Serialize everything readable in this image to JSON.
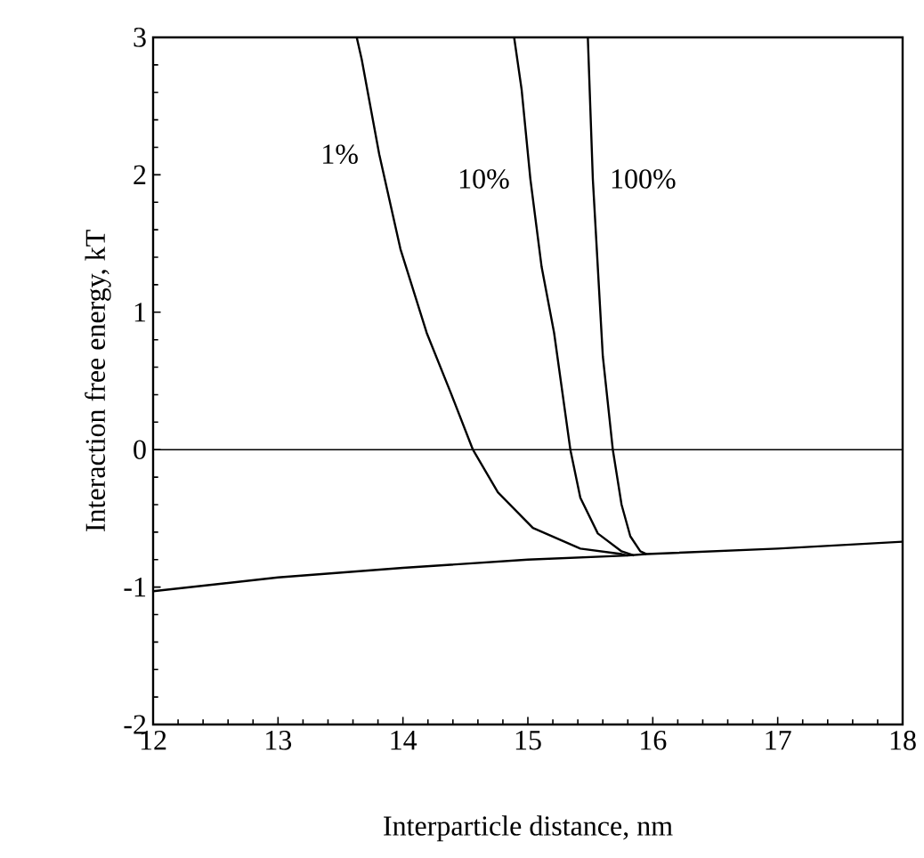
{
  "chart_data": {
    "type": "line",
    "xlabel": "Interparticle distance, nm",
    "ylabel": "Interaction free energy, kT",
    "xlim": [
      12,
      18
    ],
    "ylim": [
      -2,
      3
    ],
    "xticks": [
      12,
      13,
      14,
      15,
      16,
      17,
      18
    ],
    "yticks": [
      -2,
      -1,
      0,
      1,
      2,
      3
    ],
    "grid": false,
    "legend": false,
    "marker": "none",
    "line_style": "solid",
    "ref_lines": [
      {
        "axis": "y",
        "value": 0,
        "color": "#000000"
      }
    ],
    "series": [
      {
        "color": "#000000",
        "x": [
          12,
          13,
          14,
          15,
          15.8,
          15.95,
          17,
          18
        ],
        "values": [
          -1.03,
          -0.93,
          -0.86,
          -0.8,
          -0.77,
          -0.76,
          -0.72,
          -0.67
        ]
      },
      {
        "name": "1%",
        "color": "#000000",
        "x": [
          13.63,
          13.67,
          13.81,
          13.98,
          14.19,
          14.38,
          14.56,
          14.76,
          15.04,
          15.42,
          15.75,
          15.8
        ],
        "values": [
          3,
          2.84,
          2.15,
          1.46,
          0.85,
          0.42,
          0,
          -0.31,
          -0.57,
          -0.72,
          -0.76,
          -0.77
        ]
      },
      {
        "name": "10%",
        "color": "#000000",
        "x": [
          14.89,
          14.95,
          15.02,
          15.11,
          15.21,
          15.34,
          15.42,
          15.56,
          15.75,
          15.85
        ],
        "values": [
          3,
          2.62,
          1.97,
          1.33,
          0.85,
          0,
          -0.35,
          -0.61,
          -0.74,
          -0.77
        ]
      },
      {
        "name": "100%",
        "color": "#000000",
        "x": [
          15.48,
          15.52,
          15.6,
          15.68,
          15.75,
          15.82,
          15.9,
          15.95
        ],
        "values": [
          3,
          1.97,
          0.68,
          0,
          -0.4,
          -0.63,
          -0.74,
          -0.76
        ]
      }
    ]
  }
}
